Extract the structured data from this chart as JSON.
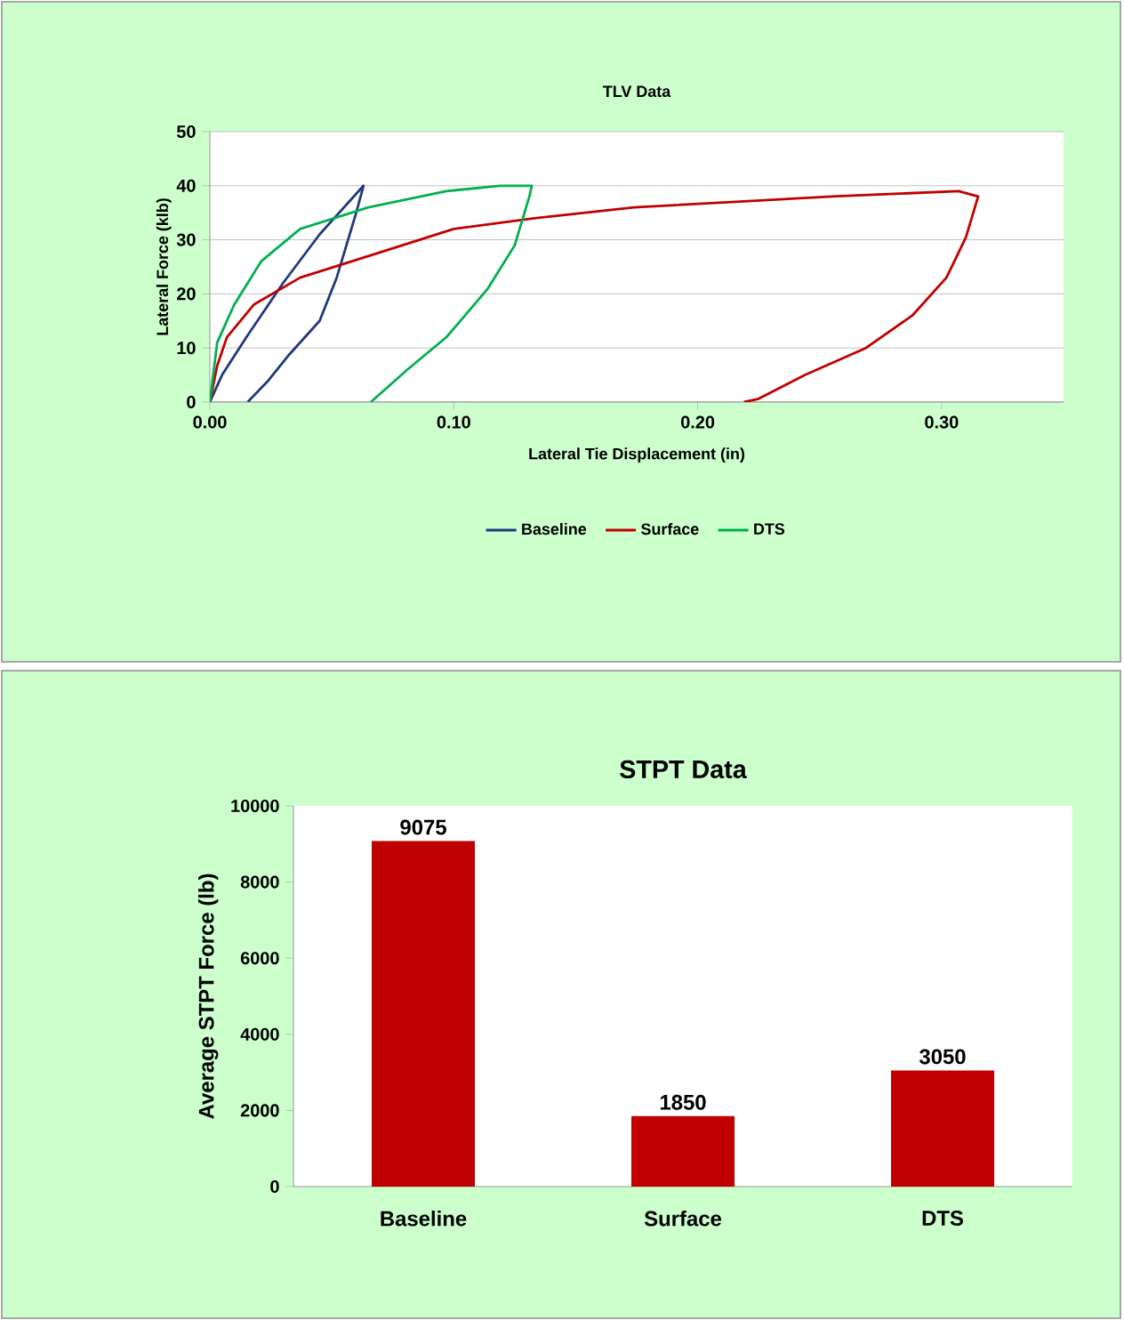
{
  "chart_data": [
    {
      "type": "line",
      "title": "TLV Data",
      "xlabel": "Lateral Tie Displacement (in)",
      "ylabel": "Lateral Force (klb)",
      "xlim": [
        0,
        0.35
      ],
      "xticks": [
        {
          "value": 0,
          "label": "0.00"
        },
        {
          "value": 0.1,
          "label": "0.10"
        },
        {
          "value": 0.2,
          "label": "0.20"
        },
        {
          "value": 0.3,
          "label": "0.30"
        }
      ],
      "ylim": [
        0,
        50
      ],
      "yticks": [
        0,
        10,
        20,
        30,
        40,
        50
      ],
      "grid": "y",
      "legend": "bottom",
      "marker": "none",
      "line_style": "solid",
      "series": [
        {
          "name": "Baseline",
          "color": "#1f3a7a",
          "x": [
            0,
            0.005,
            0.015,
            0.03,
            0.045,
            0.063,
            0.06,
            0.052,
            0.045,
            0.032,
            0.024,
            0.0155
          ],
          "values": [
            0,
            5,
            12,
            22,
            31,
            40,
            35,
            23,
            15,
            8.5,
            4,
            0
          ]
        },
        {
          "name": "Surface",
          "color": "#c00000",
          "x": [
            0,
            0.003,
            0.007,
            0.018,
            0.037,
            0.065,
            0.1,
            0.133,
            0.174,
            0.214,
            0.255,
            0.307,
            0.315,
            0.31,
            0.302,
            0.288,
            0.269,
            0.244,
            0.225,
            0.219
          ],
          "values": [
            0,
            6.7,
            12,
            18,
            23,
            27,
            32,
            34,
            36,
            37,
            38,
            39,
            38,
            30.5,
            23,
            16,
            10,
            5,
            0.6,
            0
          ]
        },
        {
          "name": "DTS",
          "color": "#00b050",
          "x": [
            0,
            0.003,
            0.01,
            0.021,
            0.037,
            0.065,
            0.097,
            0.119,
            0.132,
            0.131,
            0.125,
            0.114,
            0.097,
            0.081,
            0.066
          ],
          "values": [
            0,
            11,
            18,
            26,
            32,
            36,
            39,
            40,
            40,
            38,
            29,
            21,
            12,
            6,
            0
          ]
        }
      ]
    },
    {
      "type": "bar",
      "title": "STPT Data",
      "ylabel": "Average STPT Force (lb)",
      "categories": [
        "Baseline",
        "Surface",
        "DTS"
      ],
      "values": [
        9075,
        1850,
        3050
      ],
      "color": "#c00000",
      "ylim": [
        0,
        10000
      ],
      "yticks": [
        0,
        2000,
        4000,
        6000,
        8000,
        10000
      ],
      "data_labels": true
    }
  ]
}
